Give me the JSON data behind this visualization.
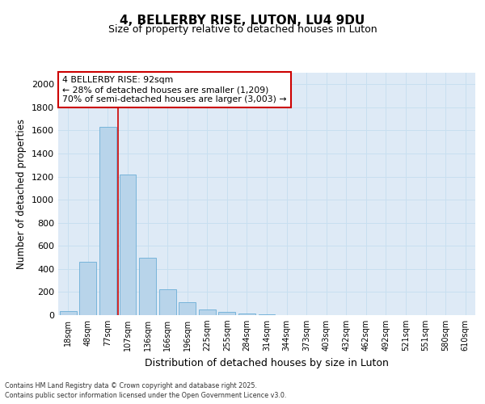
{
  "title_line1": "4, BELLERBY RISE, LUTON, LU4 9DU",
  "title_line2": "Size of property relative to detached houses in Luton",
  "xlabel": "Distribution of detached houses by size in Luton",
  "ylabel": "Number of detached properties",
  "categories": [
    "18sqm",
    "48sqm",
    "77sqm",
    "107sqm",
    "136sqm",
    "166sqm",
    "196sqm",
    "225sqm",
    "255sqm",
    "284sqm",
    "314sqm",
    "344sqm",
    "373sqm",
    "403sqm",
    "432sqm",
    "462sqm",
    "492sqm",
    "521sqm",
    "551sqm",
    "580sqm",
    "610sqm"
  ],
  "values": [
    35,
    460,
    1630,
    1220,
    500,
    225,
    115,
    50,
    25,
    15,
    10,
    0,
    0,
    0,
    0,
    0,
    0,
    0,
    0,
    0,
    0
  ],
  "bar_color": "#b8d4ea",
  "bar_edge_color": "#6baed6",
  "grid_color": "#c8dff0",
  "background_color": "#deeaf6",
  "red_line_x": 2.5,
  "annotation_box_text": "4 BELLERBY RISE: 92sqm\n← 28% of detached houses are smaller (1,209)\n70% of semi-detached houses are larger (3,003) →",
  "annotation_box_color": "#cc0000",
  "ylim": [
    0,
    2100
  ],
  "yticks": [
    0,
    200,
    400,
    600,
    800,
    1000,
    1200,
    1400,
    1600,
    1800,
    2000
  ],
  "footer_line1": "Contains HM Land Registry data © Crown copyright and database right 2025.",
  "footer_line2": "Contains public sector information licensed under the Open Government Licence v3.0."
}
